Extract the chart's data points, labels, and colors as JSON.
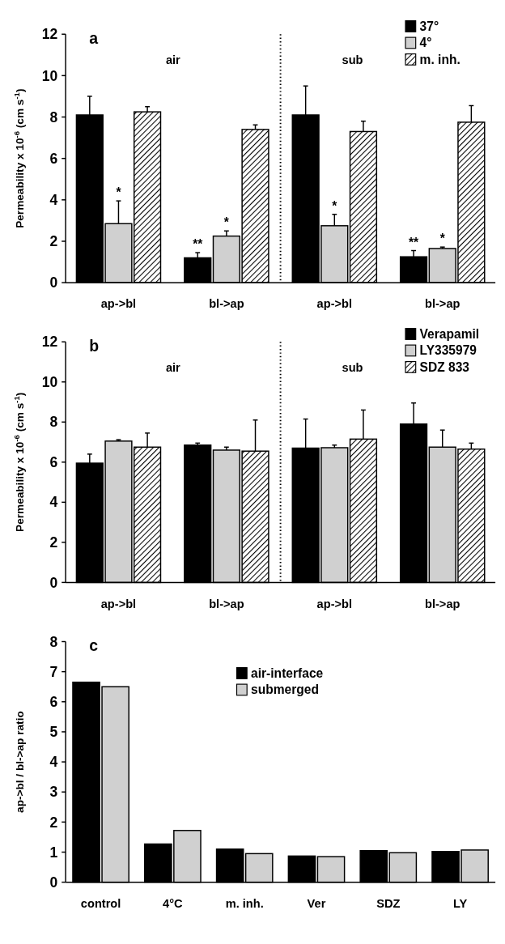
{
  "chart_data": [
    {
      "type": "bar",
      "title": "a",
      "ylabel": "Permeability x 10$^{-6}$ (cm s$^{-1}$)",
      "categories": [
        "ap->bl",
        "bl->ap",
        "ap->bl",
        "bl->ap"
      ],
      "ylim": [
        0,
        12
      ],
      "yticks": [
        0,
        2,
        4,
        6,
        8,
        10,
        12
      ],
      "grid": false,
      "legend": "top right",
      "series": [
        {
          "name": "37°",
          "color": "#000000",
          "values": [
            8.1,
            1.2,
            8.1,
            1.25
          ],
          "errors": [
            [
              8.1,
              9.0
            ],
            [
              1.2,
              1.45
            ],
            [
              8.1,
              9.5
            ],
            [
              1.25,
              1.55
            ]
          ],
          "value_labels": [
            null,
            "**",
            null,
            "**"
          ]
        },
        {
          "name": "4°",
          "color": "#d0d0d0",
          "values": [
            2.85,
            2.25,
            2.75,
            1.65
          ],
          "errors": [
            [
              2.85,
              3.95
            ],
            [
              2.25,
              2.5
            ],
            [
              2.75,
              3.3
            ],
            [
              1.65,
              1.72
            ]
          ],
          "value_labels": [
            "*",
            "*",
            "*",
            "*"
          ]
        },
        {
          "name": "m. inh.",
          "color": "#000000",
          "values": [
            8.25,
            7.4,
            7.3,
            7.75
          ],
          "errors": [
            [
              8.25,
              8.5
            ],
            [
              7.4,
              7.62
            ],
            [
              7.3,
              7.8
            ],
            [
              7.75,
              8.55
            ]
          ]
        }
      ],
      "annotations": [
        "air",
        "sub"
      ]
    },
    {
      "type": "bar",
      "title": "b",
      "ylabel": "Permeability x 10$^{-6}$ (cm s$^{-1}$)",
      "categories": [
        "ap->bl",
        "bl->ap",
        "ap->bl",
        "bl->ap"
      ],
      "ylim": [
        0,
        12
      ],
      "yticks": [
        0,
        2,
        4,
        6,
        8,
        10,
        12
      ],
      "grid": false,
      "legend": "top right",
      "series": [
        {
          "name": "Verapamil",
          "color": "#000000",
          "values": [
            5.95,
            6.85,
            6.7,
            7.9
          ],
          "errors": [
            [
              5.95,
              6.4
            ],
            [
              6.85,
              6.95
            ],
            [
              6.7,
              8.15
            ],
            [
              7.9,
              8.95
            ]
          ]
        },
        {
          "name": "LY335979",
          "color": "#d0d0d0",
          "values": [
            7.05,
            6.6,
            6.72,
            6.75
          ],
          "errors": [
            [
              7.05,
              7.12
            ],
            [
              6.6,
              6.75
            ],
            [
              6.72,
              6.85
            ],
            [
              6.75,
              7.6
            ]
          ]
        },
        {
          "name": "SDZ 833",
          "color": "#000000",
          "values": [
            6.75,
            6.55,
            7.15,
            6.65
          ],
          "errors": [
            [
              6.75,
              7.45
            ],
            [
              6.55,
              8.1
            ],
            [
              7.15,
              8.6
            ],
            [
              6.65,
              6.95
            ]
          ]
        }
      ],
      "annotations": [
        "air",
        "sub"
      ]
    },
    {
      "type": "bar",
      "title": "c",
      "ylabel": "ap->bl / bl->ap ratio",
      "categories": [
        "control",
        "4°C",
        "m. inh.",
        "Ver",
        "SDZ",
        "LY"
      ],
      "ylim": [
        0,
        8
      ],
      "yticks": [
        0,
        1,
        2,
        3,
        4,
        5,
        6,
        7,
        8
      ],
      "grid": false,
      "legend": "top",
      "series": [
        {
          "name": "air-interface",
          "color": "#000000",
          "values": [
            6.65,
            1.27,
            1.1,
            0.87,
            1.05,
            1.02
          ]
        },
        {
          "name": "submerged",
          "color": "#d0d0d0",
          "values": [
            6.5,
            1.72,
            0.95,
            0.85,
            0.98,
            1.07
          ]
        }
      ]
    }
  ]
}
